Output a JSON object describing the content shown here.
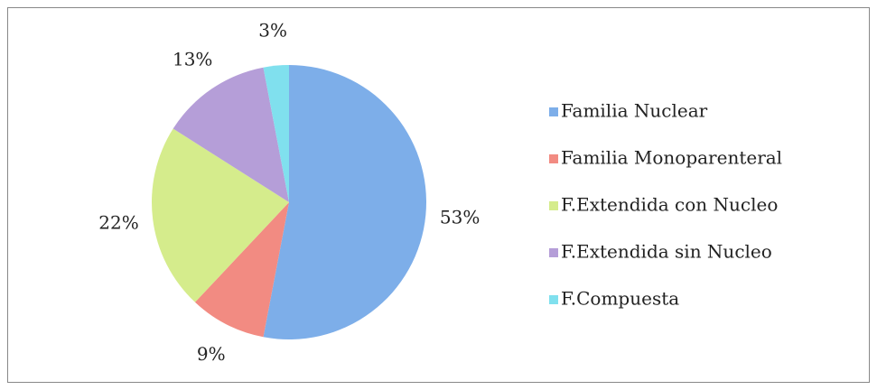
{
  "chart_data": {
    "type": "pie",
    "categories": [
      "Familia Nuclear",
      "Familia Monoparenteral",
      "F.Extendida con Nucleo",
      "F.Extendida sin Nucleo",
      "F.Compuesta"
    ],
    "values": [
      53,
      9,
      22,
      13,
      3
    ],
    "value_labels": [
      "53%",
      "9%",
      "22%",
      "13%",
      "3%"
    ],
    "colors": [
      "#7daee9",
      "#f28b82",
      "#d5ec8c",
      "#b59ed8",
      "#80e0ee"
    ],
    "legend": "right"
  }
}
